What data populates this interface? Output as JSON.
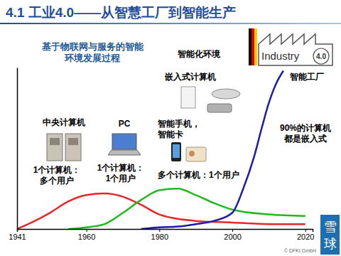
{
  "header": {
    "title": "4.1 工业4.0——从智慧工厂到智能生产"
  },
  "icon": {
    "label": "Industry",
    "version": "4.0"
  },
  "chart_data": {
    "type": "line",
    "title": "基于物联网与服务的智能环境发展过程",
    "xlim": [
      1941,
      2022
    ],
    "xticks": [
      1941,
      1960,
      1980,
      2000,
      2020
    ],
    "ylim": [
      0,
      100
    ],
    "tick_labels": "x",
    "grid": false,
    "series": [
      {
        "color": "#e8262a",
        "x": [
          1941,
          1945,
          1950,
          1955,
          1960,
          1965,
          1970,
          1975,
          1980,
          1990,
          2000,
          2010,
          2020
        ],
        "values": [
          0,
          4,
          10,
          17,
          21,
          22,
          20,
          15,
          9,
          5,
          4,
          3,
          3
        ]
      },
      {
        "color": "#22b822",
        "x": [
          1955,
          1960,
          1965,
          1970,
          1975,
          1980,
          1985,
          1990,
          1995,
          2000,
          2010,
          2020
        ],
        "values": [
          0,
          1,
          3,
          10,
          18,
          24,
          25,
          21,
          16,
          12,
          9,
          8
        ]
      },
      {
        "color": "#1c1ca8",
        "x": [
          1975,
          1980,
          1985,
          1990,
          1995,
          2000,
          2003,
          2006,
          2008,
          2010,
          2012,
          2014
        ],
        "values": [
          0,
          1,
          1.5,
          3,
          5,
          10,
          25,
          45,
          62,
          78,
          90,
          98
        ]
      }
    ],
    "annotations": [
      {
        "text": [
          "智能化环境"
        ]
      },
      {
        "text": [
          "嵌入式计算机"
        ]
      },
      {
        "text": [
          "智能工厂"
        ]
      },
      {
        "text": [
          "中央计算机"
        ]
      },
      {
        "text": [
          "PC"
        ]
      },
      {
        "text": [
          "智能手机，",
          "智能卡"
        ]
      },
      {
        "text": [
          "90%的计算机",
          "都是嵌入式"
        ]
      },
      {
        "text": [
          "1个计算机：",
          "多个用户"
        ]
      },
      {
        "text": [
          "1个计算机：",
          "1个用户"
        ]
      },
      {
        "text": [
          "多个计算机：1个用户"
        ]
      }
    ]
  },
  "footer": {
    "credit": "© DFKI GmbH",
    "watermark": "雪球"
  }
}
